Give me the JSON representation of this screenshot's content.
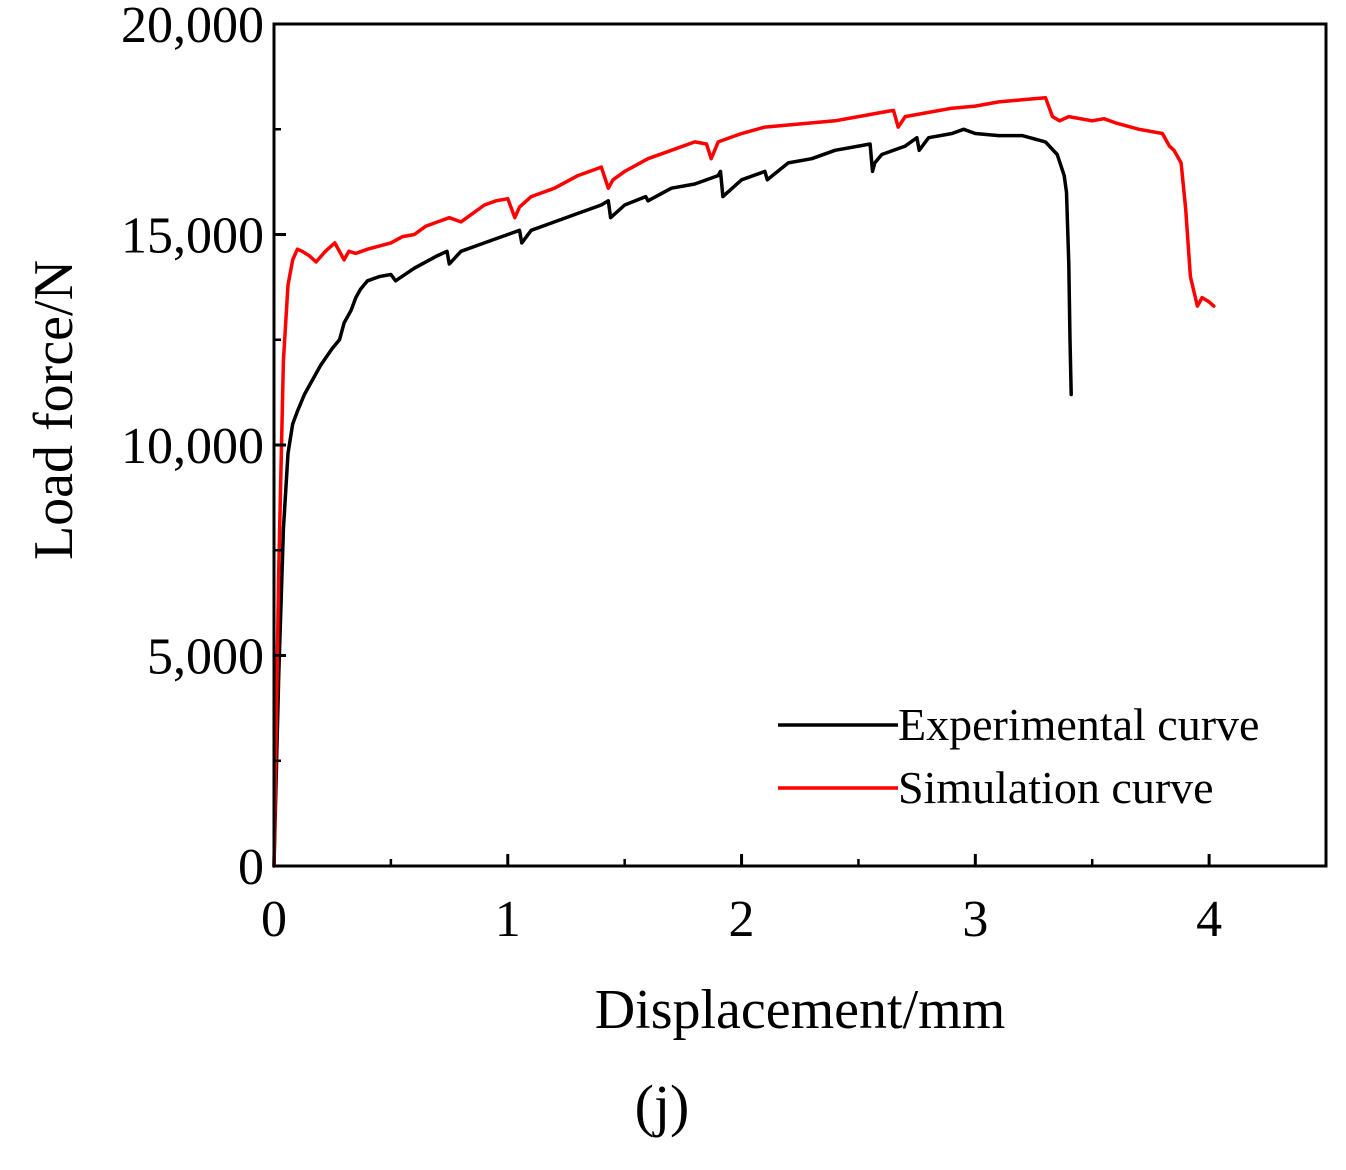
{
  "chart_data": {
    "type": "line",
    "title": "",
    "caption": "(j)",
    "xlabel": "Displacement/mm",
    "ylabel": "Load force/N",
    "xlim": [
      0,
      4.5
    ],
    "ylim": [
      0,
      20000
    ],
    "xticks": [
      0,
      1,
      2,
      3,
      4
    ],
    "xtick_labels": [
      "0",
      "1",
      "2",
      "3",
      "4"
    ],
    "yticks": [
      0,
      5000,
      10000,
      15000,
      20000
    ],
    "ytick_labels": [
      "0",
      "5,000",
      "10,000",
      "15,000",
      "20,000"
    ],
    "legend_position": "lower-right",
    "colors": {
      "experimental": "#000000",
      "simulation": "#ff0000",
      "axis": "#000000"
    },
    "series": [
      {
        "name": "Experimental curve",
        "color": "#000000",
        "x": [
          0,
          0.02,
          0.04,
          0.06,
          0.08,
          0.1,
          0.13,
          0.16,
          0.2,
          0.25,
          0.28,
          0.3,
          0.33,
          0.35,
          0.37,
          0.4,
          0.45,
          0.5,
          0.52,
          0.6,
          0.7,
          0.74,
          0.75,
          0.8,
          0.9,
          1.0,
          1.05,
          1.06,
          1.1,
          1.2,
          1.3,
          1.4,
          1.43,
          1.44,
          1.5,
          1.59,
          1.6,
          1.7,
          1.8,
          1.9,
          1.91,
          1.92,
          2.0,
          2.1,
          2.11,
          2.2,
          2.3,
          2.4,
          2.5,
          2.55,
          2.56,
          2.57,
          2.6,
          2.7,
          2.75,
          2.76,
          2.8,
          2.9,
          2.95,
          3.0,
          3.1,
          3.2,
          3.3,
          3.35,
          3.38,
          3.39,
          3.4,
          3.405,
          3.41
        ],
        "values": [
          0,
          4500,
          8000,
          9800,
          10500,
          10800,
          11200,
          11500,
          11900,
          12300,
          12500,
          12900,
          13200,
          13500,
          13700,
          13900,
          14000,
          14050,
          13900,
          14200,
          14500,
          14600,
          14300,
          14600,
          14800,
          15000,
          15100,
          14800,
          15100,
          15300,
          15500,
          15700,
          15800,
          15400,
          15700,
          15900,
          15800,
          16100,
          16200,
          16400,
          16500,
          15900,
          16300,
          16500,
          16300,
          16700,
          16800,
          17000,
          17100,
          17150,
          16500,
          16700,
          16900,
          17100,
          17300,
          17000,
          17300,
          17400,
          17500,
          17400,
          17350,
          17350,
          17200,
          16900,
          16400,
          16000,
          14300,
          12500,
          11200
        ]
      },
      {
        "name": "Simulation curve",
        "color": "#ff0000",
        "x": [
          0,
          0.02,
          0.04,
          0.06,
          0.08,
          0.1,
          0.12,
          0.15,
          0.18,
          0.22,
          0.26,
          0.3,
          0.32,
          0.35,
          0.4,
          0.5,
          0.55,
          0.6,
          0.65,
          0.7,
          0.75,
          0.8,
          0.85,
          0.9,
          0.95,
          1.0,
          1.03,
          1.05,
          1.1,
          1.2,
          1.3,
          1.4,
          1.43,
          1.45,
          1.5,
          1.6,
          1.7,
          1.8,
          1.85,
          1.87,
          1.9,
          2.0,
          2.1,
          2.2,
          2.3,
          2.4,
          2.5,
          2.6,
          2.65,
          2.67,
          2.7,
          2.8,
          2.9,
          3.0,
          3.1,
          3.2,
          3.3,
          3.33,
          3.36,
          3.4,
          3.5,
          3.55,
          3.6,
          3.7,
          3.8,
          3.83,
          3.85,
          3.88,
          3.9,
          3.92,
          3.95,
          3.97,
          4.0,
          4.02
        ],
        "values": [
          0,
          7000,
          12000,
          13800,
          14400,
          14650,
          14600,
          14500,
          14350,
          14600,
          14800,
          14400,
          14600,
          14550,
          14650,
          14800,
          14950,
          15000,
          15200,
          15300,
          15400,
          15300,
          15500,
          15700,
          15800,
          15850,
          15400,
          15650,
          15900,
          16100,
          16400,
          16600,
          16100,
          16300,
          16500,
          16800,
          17000,
          17200,
          17150,
          16800,
          17200,
          17400,
          17550,
          17600,
          17650,
          17700,
          17800,
          17900,
          17950,
          17550,
          17800,
          17900,
          18000,
          18050,
          18150,
          18200,
          18250,
          17800,
          17700,
          17800,
          17700,
          17750,
          17650,
          17500,
          17400,
          17100,
          17000,
          16700,
          15600,
          14000,
          13300,
          13500,
          13400,
          13300
        ]
      }
    ]
  }
}
